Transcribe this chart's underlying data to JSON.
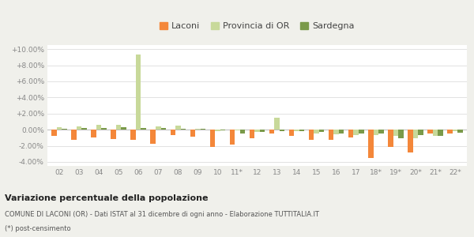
{
  "categories": [
    "02",
    "03",
    "04",
    "05",
    "06",
    "07",
    "08",
    "09",
    "10",
    "11*",
    "12",
    "13",
    "14",
    "15",
    "16",
    "17",
    "18*",
    "19*",
    "20*",
    "21*",
    "22*"
  ],
  "laconi": [
    -0.8,
    -1.3,
    -1.0,
    -1.2,
    -1.3,
    -1.8,
    -0.7,
    -0.9,
    -2.1,
    -1.9,
    -1.1,
    -0.5,
    -0.8,
    -1.3,
    -1.3,
    -1.0,
    -3.5,
    -2.1,
    -2.8,
    -0.5,
    -0.5
  ],
  "provincia_or": [
    0.3,
    0.4,
    0.6,
    0.6,
    9.3,
    0.4,
    0.5,
    0.1,
    -0.2,
    -0.1,
    -0.3,
    1.5,
    -0.2,
    -0.5,
    -0.6,
    -0.7,
    -0.7,
    -0.8,
    -1.1,
    -0.8,
    -0.2
  ],
  "sardegna": [
    0.1,
    0.2,
    0.2,
    0.3,
    0.2,
    0.2,
    0.1,
    0.1,
    -0.1,
    -0.5,
    -0.3,
    -0.2,
    -0.2,
    -0.3,
    -0.5,
    -0.5,
    -0.5,
    -1.1,
    -0.7,
    -0.8,
    -0.4
  ],
  "color_laconi": "#f4873a",
  "color_provincia": "#c8d99a",
  "color_sardegna": "#7a9a4a",
  "title": "Variazione percentuale della popolazione",
  "subtitle": "COMUNE DI LACONI (OR) - Dati ISTAT al 31 dicembre di ogni anno - Elaborazione TUTTITALIA.IT",
  "footnote": "(*) post-censimento",
  "legend_labels": [
    "Laconi",
    "Provincia di OR",
    "Sardegna"
  ],
  "ylim": [
    -4.5,
    10.5
  ],
  "yticks": [
    -4.0,
    -2.0,
    0.0,
    2.0,
    4.0,
    6.0,
    8.0,
    10.0
  ],
  "ytick_labels": [
    "-4.00%",
    "-2.00%",
    "0.00%",
    "+2.00%",
    "+4.00%",
    "+6.00%",
    "+8.00%",
    "+10.00%"
  ],
  "bg_color": "#f0f0eb",
  "plot_bg_color": "#ffffff"
}
